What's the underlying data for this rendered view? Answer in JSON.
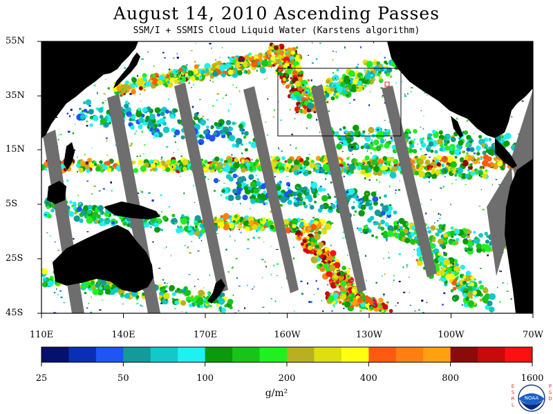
{
  "header": {
    "title": "August 14, 2010  Ascending Passes",
    "subtitle": "SSM/I + SSMIS Cloud Liquid Water (Karstens algorithm)"
  },
  "axes": {
    "lat_labels": [
      "55N",
      "35N",
      "15N",
      "5S",
      "25S",
      "45S"
    ],
    "lon_labels": [
      "110E",
      "140E",
      "170E",
      "160W",
      "130W",
      "100W",
      "70W"
    ]
  },
  "colorbar": {
    "tick_labels": [
      "25",
      "50",
      "100",
      "200",
      "400",
      "800",
      "1600"
    ],
    "unit": "g/m²",
    "colors": [
      "#06106e",
      "#0a2fb5",
      "#1e55f5",
      "#149a9a",
      "#12c8c8",
      "#1ff0f0",
      "#0a9a0a",
      "#18c418",
      "#20f020",
      "#b8b020",
      "#dede10",
      "#ffff10",
      "#ff5a10",
      "#ff8010",
      "#ffa010",
      "#8c0a0a",
      "#c80a0a",
      "#ff1010"
    ]
  },
  "colors": {
    "land": "#000000",
    "gap": "#6e6e6e",
    "ocean": "#ffffff",
    "box": "#000000"
  },
  "logo": {
    "left_letters": "ESRL",
    "right_letters": "PSD",
    "emblem_text": "NOAA"
  }
}
